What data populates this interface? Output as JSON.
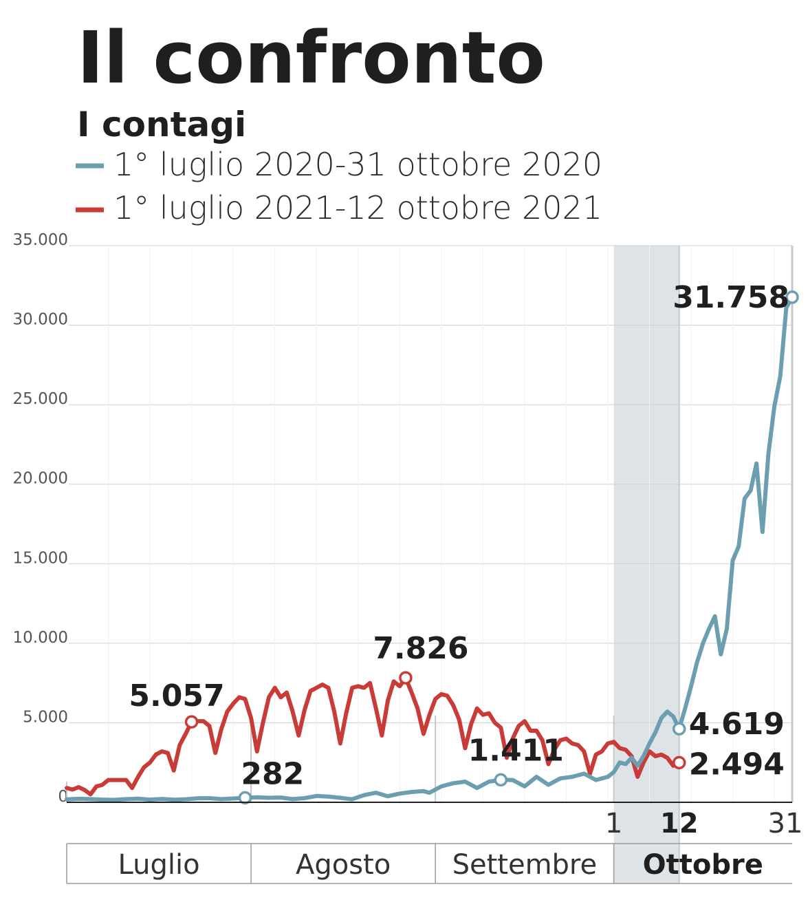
{
  "chart_data": {
    "type": "line",
    "title": "Il confronto",
    "subtitle": "I contagi",
    "ylim": [
      0,
      35000
    ],
    "yticks": [
      0,
      5000,
      10000,
      15000,
      20000,
      25000,
      30000,
      35000
    ],
    "ytick_labels": [
      "0",
      "5.000",
      "10.000",
      "15.000",
      "20.000",
      "25.000",
      "30.000",
      "35.000"
    ],
    "xlim": [
      "07-01",
      "10-31"
    ],
    "x_ticks": [
      {
        "x": "10-01",
        "label": "1",
        "bold": false
      },
      {
        "x": "10-12",
        "label": "12",
        "bold": true
      },
      {
        "x": "10-31",
        "label": "31",
        "bold": false
      }
    ],
    "months": [
      {
        "label": "Luglio",
        "start": "07-01",
        "end": "07-31",
        "bold": false
      },
      {
        "label": "Agosto",
        "start": "08-01",
        "end": "08-31",
        "bold": false
      },
      {
        "label": "Settembre",
        "start": "09-01",
        "end": "09-30",
        "bold": false
      },
      {
        "label": "Ottobre",
        "start": "10-01",
        "end": "10-31",
        "bold": true
      }
    ],
    "highlight": {
      "start": "10-01",
      "end": "10-12",
      "color": "#dde3e6"
    },
    "grid": true,
    "legend": "top-left",
    "series": [
      {
        "name": "1° luglio 2020-31 ottobre 2020",
        "color": "#6b9fb0",
        "points": [
          [
            "07-01",
            180
          ],
          [
            "07-03",
            220
          ],
          [
            "07-05",
            200
          ],
          [
            "07-07",
            170
          ],
          [
            "07-09",
            150
          ],
          [
            "07-11",
            200
          ],
          [
            "07-13",
            230
          ],
          [
            "07-15",
            170
          ],
          [
            "07-17",
            210
          ],
          [
            "07-19",
            160
          ],
          [
            "07-21",
            190
          ],
          [
            "07-23",
            250
          ],
          [
            "07-25",
            260
          ],
          [
            "07-27",
            200
          ],
          [
            "07-29",
            240
          ],
          [
            "07-31",
            282
          ],
          [
            "08-02",
            310
          ],
          [
            "08-04",
            280
          ],
          [
            "08-06",
            300
          ],
          [
            "08-08",
            200
          ],
          [
            "08-10",
            260
          ],
          [
            "08-12",
            400
          ],
          [
            "08-14",
            360
          ],
          [
            "08-16",
            280
          ],
          [
            "08-18",
            190
          ],
          [
            "08-20",
            450
          ],
          [
            "08-22",
            600
          ],
          [
            "08-24",
            380
          ],
          [
            "08-26",
            550
          ],
          [
            "08-28",
            650
          ],
          [
            "08-30",
            700
          ],
          [
            "08-31",
            600
          ],
          [
            "09-02",
            1000
          ],
          [
            "09-04",
            1200
          ],
          [
            "09-06",
            1300
          ],
          [
            "09-08",
            900
          ],
          [
            "09-10",
            1300
          ],
          [
            "09-12",
            1411
          ],
          [
            "09-14",
            1400
          ],
          [
            "09-16",
            1000
          ],
          [
            "09-18",
            1600
          ],
          [
            "09-20",
            1100
          ],
          [
            "09-22",
            1500
          ],
          [
            "09-24",
            1600
          ],
          [
            "09-26",
            1800
          ],
          [
            "09-28",
            1400
          ],
          [
            "09-30",
            1600
          ],
          [
            "10-01",
            1900
          ],
          [
            "10-02",
            2500
          ],
          [
            "10-03",
            2400
          ],
          [
            "10-04",
            2800
          ],
          [
            "10-05",
            2300
          ],
          [
            "10-06",
            2900
          ],
          [
            "10-07",
            3700
          ],
          [
            "10-08",
            4400
          ],
          [
            "10-09",
            5300
          ],
          [
            "10-10",
            5700
          ],
          [
            "10-11",
            5400
          ],
          [
            "10-12",
            4619
          ],
          [
            "10-13",
            5900
          ],
          [
            "10-14",
            7300
          ],
          [
            "10-15",
            8800
          ],
          [
            "10-16",
            10000
          ],
          [
            "10-17",
            10900
          ],
          [
            "10-18",
            11700
          ],
          [
            "10-19",
            9300
          ],
          [
            "10-20",
            10900
          ],
          [
            "10-21",
            15200
          ],
          [
            "10-22",
            16100
          ],
          [
            "10-23",
            19100
          ],
          [
            "10-24",
            19600
          ],
          [
            "10-25",
            21300
          ],
          [
            "10-26",
            17000
          ],
          [
            "10-27",
            21900
          ],
          [
            "10-28",
            24900
          ],
          [
            "10-29",
            26800
          ],
          [
            "10-30",
            31100
          ],
          [
            "10-31",
            31758
          ]
        ]
      },
      {
        "name": "1° luglio 2021-12 ottobre 2021",
        "color": "#c93b37",
        "points": [
          [
            "07-01",
            900
          ],
          [
            "07-02",
            800
          ],
          [
            "07-03",
            950
          ],
          [
            "07-04",
            780
          ],
          [
            "07-05",
            500
          ],
          [
            "07-06",
            1000
          ],
          [
            "07-07",
            1100
          ],
          [
            "07-08",
            1400
          ],
          [
            "07-09",
            1400
          ],
          [
            "07-10",
            1400
          ],
          [
            "07-11",
            1400
          ],
          [
            "07-12",
            900
          ],
          [
            "07-13",
            1600
          ],
          [
            "07-14",
            2200
          ],
          [
            "07-15",
            2500
          ],
          [
            "07-16",
            3000
          ],
          [
            "07-17",
            3200
          ],
          [
            "07-18",
            3100
          ],
          [
            "07-19",
            2000
          ],
          [
            "07-20",
            3600
          ],
          [
            "07-21",
            4300
          ],
          [
            "07-22",
            5057
          ],
          [
            "07-23",
            5100
          ],
          [
            "07-24",
            5100
          ],
          [
            "07-25",
            4800
          ],
          [
            "07-26",
            3100
          ],
          [
            "07-27",
            4600
          ],
          [
            "07-28",
            5700
          ],
          [
            "07-29",
            6200
          ],
          [
            "07-30",
            6600
          ],
          [
            "07-31",
            6500
          ],
          [
            "08-01",
            5300
          ],
          [
            "08-02",
            3200
          ],
          [
            "08-03",
            5000
          ],
          [
            "08-04",
            6600
          ],
          [
            "08-05",
            7200
          ],
          [
            "08-06",
            6600
          ],
          [
            "08-07",
            6900
          ],
          [
            "08-08",
            5700
          ],
          [
            "08-09",
            4200
          ],
          [
            "08-10",
            5800
          ],
          [
            "08-11",
            7000
          ],
          [
            "08-12",
            7200
          ],
          [
            "08-13",
            7400
          ],
          [
            "08-14",
            7200
          ],
          [
            "08-15",
            5700
          ],
          [
            "08-16",
            3700
          ],
          [
            "08-17",
            5600
          ],
          [
            "08-18",
            7200
          ],
          [
            "08-19",
            7300
          ],
          [
            "08-20",
            7200
          ],
          [
            "08-21",
            7500
          ],
          [
            "08-22",
            5900
          ],
          [
            "08-23",
            4200
          ],
          [
            "08-24",
            6400
          ],
          [
            "08-25",
            7600
          ],
          [
            "08-26",
            7300
          ],
          [
            "08-27",
            7826
          ],
          [
            "08-28",
            6900
          ],
          [
            "08-29",
            5900
          ],
          [
            "08-30",
            4300
          ],
          [
            "08-31",
            5500
          ],
          [
            "09-01",
            6500
          ],
          [
            "09-02",
            6800
          ],
          [
            "09-03",
            6700
          ],
          [
            "09-04",
            6100
          ],
          [
            "09-05",
            5200
          ],
          [
            "09-06",
            3400
          ],
          [
            "09-07",
            4900
          ],
          [
            "09-08",
            5900
          ],
          [
            "09-09",
            5500
          ],
          [
            "09-10",
            5600
          ],
          [
            "09-11",
            5000
          ],
          [
            "09-12",
            4700
          ],
          [
            "09-13",
            2800
          ],
          [
            "09-14",
            4000
          ],
          [
            "09-15",
            4800
          ],
          [
            "09-16",
            5100
          ],
          [
            "09-17",
            4500
          ],
          [
            "09-18",
            4500
          ],
          [
            "09-19",
            3900
          ],
          [
            "09-20",
            2400
          ],
          [
            "09-21",
            3300
          ],
          [
            "09-22",
            3900
          ],
          [
            "09-23",
            4000
          ],
          [
            "09-24",
            3700
          ],
          [
            "09-25",
            3600
          ],
          [
            "09-26",
            3200
          ],
          [
            "09-27",
            1800
          ],
          [
            "09-28",
            3000
          ],
          [
            "09-29",
            3200
          ],
          [
            "09-30",
            3700
          ],
          [
            "10-01",
            3800
          ],
          [
            "10-02",
            3400
          ],
          [
            "10-03",
            3300
          ],
          [
            "10-04",
            2900
          ],
          [
            "10-05",
            1600
          ],
          [
            "10-06",
            2500
          ],
          [
            "10-07",
            3200
          ],
          [
            "10-08",
            2900
          ],
          [
            "10-09",
            3000
          ],
          [
            "10-10",
            2800
          ],
          [
            "10-11",
            2300
          ],
          [
            "10-12",
            2494
          ]
        ]
      }
    ],
    "annotations": [
      {
        "series": 1,
        "x": "07-22",
        "y": 5057,
        "label": "5.057",
        "pos": "above-left"
      },
      {
        "series": 0,
        "x": "07-31",
        "y": 282,
        "label": "282",
        "pos": "above-right"
      },
      {
        "series": 1,
        "x": "08-27",
        "y": 7826,
        "label": "7.826",
        "pos": "above"
      },
      {
        "series": 0,
        "x": "09-12",
        "y": 1411,
        "label": "1.411",
        "pos": "above"
      },
      {
        "series": 0,
        "x": "10-12",
        "y": 4619,
        "label": "4.619",
        "pos": "right"
      },
      {
        "series": 1,
        "x": "10-12",
        "y": 2494,
        "label": "2.494",
        "pos": "right"
      },
      {
        "series": 0,
        "x": "10-31",
        "y": 31758,
        "label": "31.758",
        "pos": "left"
      }
    ]
  }
}
